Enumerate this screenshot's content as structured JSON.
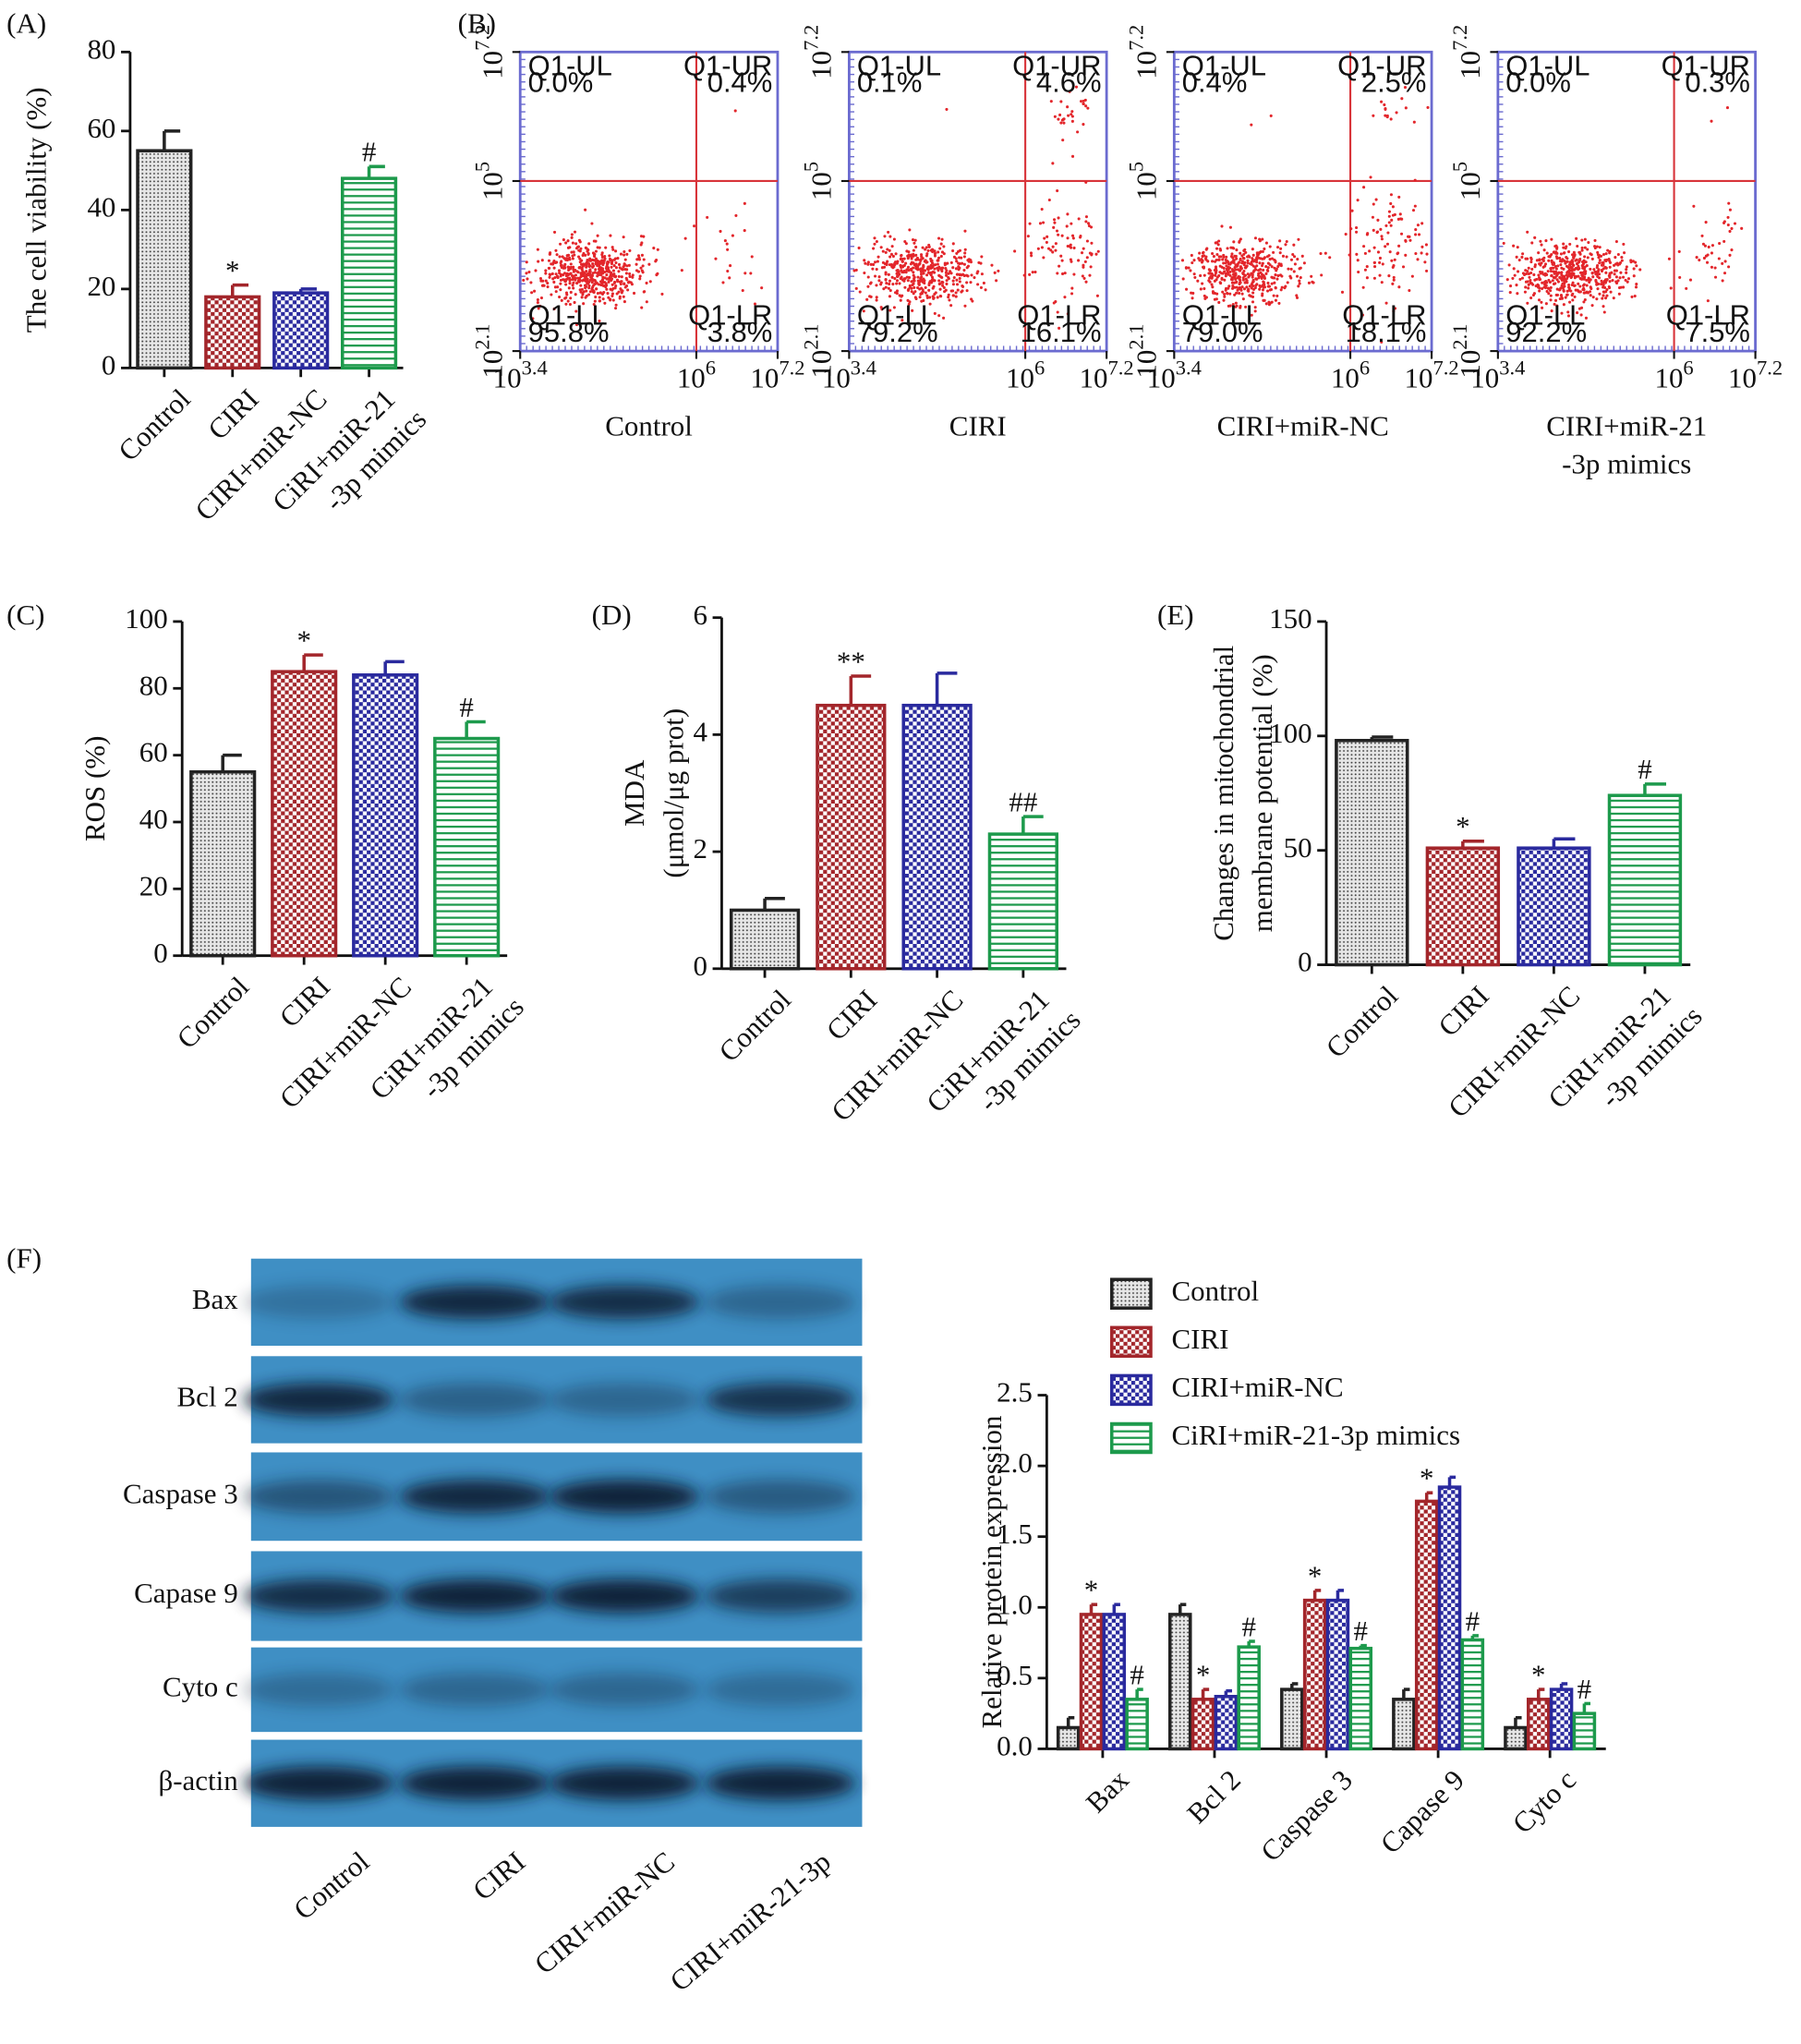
{
  "chart_data": [
    {
      "type": "bar",
      "panel": "(A)",
      "ylabel": [
        "The cell viability (%)"
      ],
      "categories": [
        [
          "Control"
        ],
        [
          "CIRI"
        ],
        [
          "CIRI+miR-NC"
        ],
        [
          "CiRI+miR-21",
          "-3p mimics"
        ]
      ],
      "values": [
        55,
        18,
        19,
        48
      ],
      "errors": [
        5,
        3,
        1,
        3
      ],
      "annotations": [
        null,
        "*",
        null,
        "#"
      ],
      "colors": [
        "#222222",
        "#a3262b",
        "#2a2a9e",
        "#1d9a4c"
      ],
      "patterns": [
        "dots",
        "checker",
        "checker",
        "stripes"
      ],
      "ylim": [
        0,
        80
      ],
      "yticks": [
        0,
        20,
        40,
        60,
        80
      ]
    },
    {
      "type": "flow",
      "panel": "(B)",
      "tick_base": "10",
      "xlim": [
        3.4,
        7.2
      ],
      "xticks": [
        3.4,
        6,
        7.2
      ],
      "ylim": [
        2.1,
        7.2
      ],
      "yticks": [
        2.1,
        5,
        7.2
      ],
      "gate_x": 6,
      "gate_y": 5,
      "color": "#e3262b",
      "quadrants": [
        "Q1-UL",
        "Q1-UR",
        "Q1-LL",
        "Q1-LR"
      ],
      "plots": [
        {
          "title": [
            "Control"
          ],
          "values": [
            0.0,
            0.4,
            95.8,
            3.8
          ],
          "value_labels": [
            "0.0%",
            "0.4%",
            "95.8%",
            "3.8%"
          ]
        },
        {
          "title": [
            "CIRI"
          ],
          "values": [
            0.1,
            4.6,
            79.2,
            16.1
          ],
          "value_labels": [
            "0.1%",
            "4.6%",
            "79.2%",
            "16.1%"
          ]
        },
        {
          "title": [
            "CIRI+miR-NC"
          ],
          "values": [
            0.4,
            2.5,
            79.0,
            18.1
          ],
          "value_labels": [
            "0.4%",
            "2.5%",
            "79.0%",
            "18.1%"
          ]
        },
        {
          "title": [
            "CIRI+miR-21",
            "-3p mimics"
          ],
          "values": [
            0.0,
            0.3,
            92.2,
            7.5
          ],
          "value_labels": [
            "0.0%",
            "0.3%",
            "92.2%",
            "7.5%"
          ]
        }
      ]
    },
    {
      "type": "bar",
      "panel": "(C)",
      "ylabel": [
        "ROS (%)"
      ],
      "categories": [
        [
          "Control"
        ],
        [
          "CIRI"
        ],
        [
          "CIRI+miR-NC"
        ],
        [
          "CiRI+miR-21",
          "-3p mimics"
        ]
      ],
      "values": [
        55,
        85,
        84,
        65
      ],
      "errors": [
        5,
        5,
        4,
        5
      ],
      "annotations": [
        null,
        "*",
        null,
        "#"
      ],
      "colors": [
        "#222222",
        "#a3262b",
        "#2a2a9e",
        "#1d9a4c"
      ],
      "patterns": [
        "dots",
        "checker",
        "checker",
        "stripes"
      ],
      "ylim": [
        0,
        100
      ],
      "yticks": [
        0,
        20,
        40,
        60,
        80,
        100
      ]
    },
    {
      "type": "bar",
      "panel": "(D)",
      "ylabel": [
        "MDA",
        "(μmol/μg prot)"
      ],
      "categories": [
        [
          "Control"
        ],
        [
          "CIRI"
        ],
        [
          "CIRI+miR-NC"
        ],
        [
          "CiRI+miR-21",
          "-3p mimics"
        ]
      ],
      "values": [
        1.0,
        4.5,
        4.5,
        2.3
      ],
      "errors": [
        0.2,
        0.5,
        0.55,
        0.3
      ],
      "annotations": [
        null,
        "**",
        null,
        "##"
      ],
      "colors": [
        "#222222",
        "#a3262b",
        "#2a2a9e",
        "#1d9a4c"
      ],
      "patterns": [
        "dots",
        "checker",
        "checker",
        "stripes"
      ],
      "ylim": [
        0,
        6
      ],
      "yticks": [
        0,
        2,
        4,
        6
      ]
    },
    {
      "type": "bar",
      "panel": "(E)",
      "ylabel": [
        "Changes in mitochondrial",
        "membrane potential (%)"
      ],
      "categories": [
        [
          "Control"
        ],
        [
          "CIRI"
        ],
        [
          "CIRI+miR-NC"
        ],
        [
          "CiRI+miR-21",
          "-3p mimics"
        ]
      ],
      "values": [
        98,
        51,
        51,
        74
      ],
      "errors": [
        1.5,
        3,
        4,
        5
      ],
      "annotations": [
        null,
        "*",
        null,
        "#"
      ],
      "colors": [
        "#222222",
        "#a3262b",
        "#2a2a9e",
        "#1d9a4c"
      ],
      "patterns": [
        "dots",
        "checker",
        "checker",
        "stripes"
      ],
      "ylim": [
        0,
        150
      ],
      "yticks": [
        0,
        50,
        100,
        150
      ]
    },
    {
      "type": "blot",
      "panel": "(F)",
      "rows": [
        "Bax",
        "Bcl 2",
        "Caspase 3",
        "Capase 9",
        "Cyto c",
        "β-actin"
      ],
      "lanes": [
        "Control",
        "CIRI",
        "CIRI+miR-NC",
        "CIRI+miR-21-3p"
      ]
    },
    {
      "type": "bar",
      "ylabel": [
        "Relative protein expression"
      ],
      "categories": [
        [
          "Bax"
        ],
        [
          "Bcl 2"
        ],
        [
          "Caspase 3"
        ],
        [
          "Capase 9"
        ],
        [
          "Cyto c"
        ]
      ],
      "series": [
        {
          "name": "Control",
          "color": "#222222",
          "pattern": "dots",
          "values": [
            0.15,
            0.95,
            0.42,
            0.35,
            0.15
          ],
          "errors": [
            0.07,
            0.07,
            0.04,
            0.07,
            0.07
          ]
        },
        {
          "name": "CIRI",
          "color": "#a3262b",
          "pattern": "checker",
          "values": [
            0.95,
            0.35,
            1.05,
            1.75,
            0.35
          ],
          "errors": [
            0.07,
            0.07,
            0.07,
            0.06,
            0.07
          ],
          "annotations": [
            "*",
            "*",
            "*",
            "*",
            "*"
          ]
        },
        {
          "name": "CIRI+miR-NC",
          "color": "#2a2a9e",
          "pattern": "checker",
          "values": [
            0.95,
            0.37,
            1.05,
            1.85,
            0.42
          ],
          "errors": [
            0.07,
            0.04,
            0.07,
            0.07,
            0.04
          ]
        },
        {
          "name": "CiRI+miR-21-3p mimics",
          "color": "#1d9a4c",
          "pattern": "stripes",
          "values": [
            0.35,
            0.72,
            0.71,
            0.77,
            0.25
          ],
          "errors": [
            0.07,
            0.04,
            0.02,
            0.03,
            0.07
          ],
          "annotations": [
            "#",
            "#",
            "#",
            "#",
            "#"
          ]
        }
      ],
      "ylim": [
        0,
        2.5
      ],
      "yticks": [
        {
          "value": 0,
          "label": "0.0"
        },
        0.5,
        {
          "value": 1,
          "label": "1.0"
        },
        1.5,
        {
          "value": 2,
          "label": "2.0"
        },
        2.5
      ],
      "legend": "top"
    }
  ]
}
